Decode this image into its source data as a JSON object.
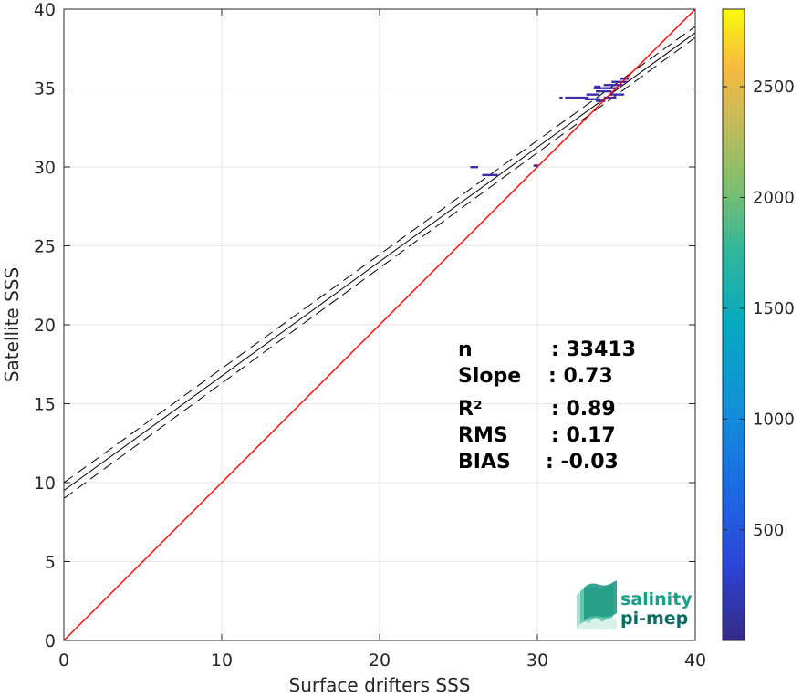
{
  "chart_data": {
    "type": "scatter",
    "xlabel": "Surface drifters SSS",
    "ylabel": "Satellite SSS",
    "xlim": [
      0,
      40
    ],
    "ylim": [
      0,
      40
    ],
    "xticks": [
      "0",
      "10",
      "20",
      "30",
      "40"
    ],
    "yticks": [
      "0",
      "5",
      "10",
      "15",
      "20",
      "25",
      "30",
      "35",
      "40"
    ],
    "grid": true,
    "identity_line": {
      "color": "#ff0000",
      "points": [
        [
          0,
          0
        ],
        [
          40,
          40
        ]
      ]
    },
    "regression": {
      "color": "#000000",
      "center": [
        [
          0,
          9.5
        ],
        [
          40,
          38.5
        ]
      ],
      "bounds_low": [
        [
          0,
          9.0
        ],
        [
          40,
          38.2
        ]
      ],
      "bounds_high": [
        [
          0,
          10.0
        ],
        [
          40,
          38.9
        ]
      ]
    },
    "density_points": [
      {
        "x": 26.0,
        "y": 30.0,
        "w": 0.5
      },
      {
        "x": 27.0,
        "y": 29.5,
        "w": 1.0
      },
      {
        "x": 29.9,
        "y": 30.1,
        "w": 0.3
      },
      {
        "x": 31.5,
        "y": 34.4,
        "w": 0.2
      },
      {
        "x": 32.5,
        "y": 34.4,
        "w": 1.5
      },
      {
        "x": 33.5,
        "y": 34.3,
        "w": 1.0
      },
      {
        "x": 33.5,
        "y": 34.6,
        "w": 0.8
      },
      {
        "x": 34.2,
        "y": 34.8,
        "w": 1.0
      },
      {
        "x": 34.3,
        "y": 35.0,
        "w": 1.5
      },
      {
        "x": 34.8,
        "y": 35.2,
        "w": 1.2
      },
      {
        "x": 35.0,
        "y": 34.6,
        "w": 1.0
      },
      {
        "x": 35.2,
        "y": 35.4,
        "w": 1.0
      },
      {
        "x": 34.6,
        "y": 34.4,
        "w": 0.8
      },
      {
        "x": 35.5,
        "y": 35.6,
        "w": 0.6
      },
      {
        "x": 33.8,
        "y": 35.1,
        "w": 0.4
      },
      {
        "x": 34.0,
        "y": 34.2,
        "w": 0.6
      }
    ],
    "point_color": "#3d2ea8",
    "colorbar": {
      "min": 1,
      "max": 2850,
      "ticks": [
        "500",
        "1000",
        "1500",
        "2000",
        "2500"
      ],
      "tick_values": [
        500,
        1000,
        1500,
        2000,
        2500
      ],
      "colormap": "parula",
      "placement": "right"
    },
    "stats": [
      {
        "label": "n",
        "value": ": 33413"
      },
      {
        "label": "Slope",
        "value": ": 0.73"
      },
      {
        "label": "R²",
        "value": ": 0.89"
      },
      {
        "label": "RMS",
        "value": ": 0.17"
      },
      {
        "label": "BIAS",
        "value": ": -0.03"
      }
    ]
  },
  "logo": {
    "line1": "salinity",
    "line2": "pi-mep",
    "color_line1": "#1aa08a",
    "color_line2": "#0d6b63"
  }
}
